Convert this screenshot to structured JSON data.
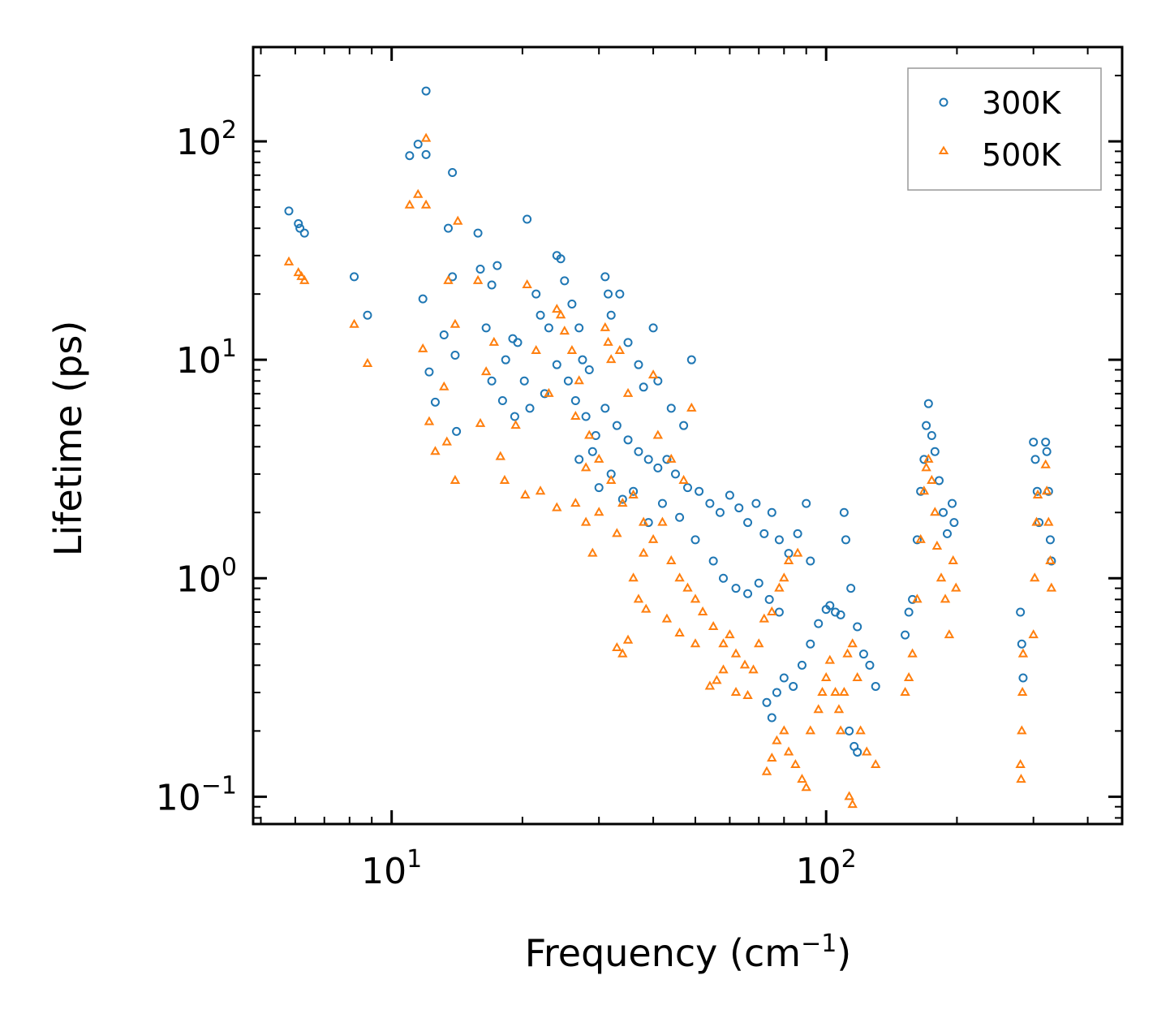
{
  "chart_data": {
    "type": "scatter",
    "title": "",
    "xlabel": "Frequency (cm",
    "xlabel_superscript": "−1",
    "xlabel_suffix": ")",
    "ylabel": "Lifetime (ps)",
    "xscale": "log",
    "yscale": "log",
    "xlim": [
      4.8,
      480
    ],
    "ylim": [
      0.075,
      270
    ],
    "x_ticks": [
      {
        "value": 10,
        "base": "10",
        "exp": "1"
      },
      {
        "value": 100,
        "base": "10",
        "exp": "2"
      }
    ],
    "y_ticks": [
      {
        "value": 0.1,
        "base": "10",
        "exp": "−1"
      },
      {
        "value": 1,
        "base": "10",
        "exp": "0"
      },
      {
        "value": 10,
        "base": "10",
        "exp": "1"
      },
      {
        "value": 100,
        "base": "10",
        "exp": "2"
      }
    ],
    "legend_position": "top-right",
    "colors": {
      "300K": "#1f77b4",
      "500K": "#ff7f0e"
    },
    "series": [
      {
        "name": "300K",
        "marker": "circle",
        "color": "#1f77b4",
        "points": [
          [
            5.8,
            48
          ],
          [
            6.1,
            42
          ],
          [
            6.15,
            40
          ],
          [
            6.3,
            38
          ],
          [
            8.2,
            24
          ],
          [
            8.8,
            16
          ],
          [
            11,
            86
          ],
          [
            11.5,
            97
          ],
          [
            12,
            170
          ],
          [
            12,
            87
          ],
          [
            13.8,
            72
          ],
          [
            11.8,
            19
          ],
          [
            12.2,
            8.8
          ],
          [
            12.6,
            6.4
          ],
          [
            13.2,
            13
          ],
          [
            13.5,
            40
          ],
          [
            14,
            10.5
          ],
          [
            14.1,
            4.7
          ],
          [
            13.8,
            24
          ],
          [
            15.8,
            38
          ],
          [
            16,
            26
          ],
          [
            16.5,
            14
          ],
          [
            17,
            22
          ],
          [
            17.5,
            27
          ],
          [
            18.3,
            10
          ],
          [
            19,
            12.5
          ],
          [
            19.5,
            12
          ],
          [
            20.2,
            8
          ],
          [
            20.5,
            44
          ],
          [
            21.5,
            20
          ],
          [
            22,
            16
          ],
          [
            23,
            14
          ],
          [
            24,
            30
          ],
          [
            24.5,
            29
          ],
          [
            25,
            23
          ],
          [
            26,
            18
          ],
          [
            27,
            14
          ],
          [
            27.5,
            10
          ],
          [
            28.5,
            9
          ],
          [
            31,
            24
          ],
          [
            31.5,
            20
          ],
          [
            32,
            16
          ],
          [
            33.5,
            20
          ],
          [
            35,
            12
          ],
          [
            37,
            9.5
          ],
          [
            38,
            7.5
          ],
          [
            40,
            14
          ],
          [
            41,
            8
          ],
          [
            44,
            6
          ],
          [
            47,
            5
          ],
          [
            49,
            10
          ],
          [
            17,
            8
          ],
          [
            18,
            6.5
          ],
          [
            19.2,
            5.5
          ],
          [
            20.8,
            6
          ],
          [
            22.5,
            7
          ],
          [
            24,
            9.5
          ],
          [
            25.5,
            8
          ],
          [
            26.5,
            6.5
          ],
          [
            28,
            5.5
          ],
          [
            29.5,
            4.5
          ],
          [
            31,
            6
          ],
          [
            33,
            5
          ],
          [
            35,
            4.3
          ],
          [
            37,
            3.8
          ],
          [
            39,
            3.5
          ],
          [
            41,
            3.2
          ],
          [
            43,
            3.5
          ],
          [
            45,
            3
          ],
          [
            48,
            2.6
          ],
          [
            51,
            2.5
          ],
          [
            54,
            2.2
          ],
          [
            57,
            2.0
          ],
          [
            60,
            2.4
          ],
          [
            63,
            2.1
          ],
          [
            66,
            1.8
          ],
          [
            69,
            2.2
          ],
          [
            72,
            1.6
          ],
          [
            75,
            2.0
          ],
          [
            78,
            1.5
          ],
          [
            82,
            1.3
          ],
          [
            86,
            1.6
          ],
          [
            90,
            2.2
          ],
          [
            92,
            1.2
          ],
          [
            55,
            1.2
          ],
          [
            58,
            1.0
          ],
          [
            62,
            0.9
          ],
          [
            66,
            0.85
          ],
          [
            70,
            0.95
          ],
          [
            74,
            0.8
          ],
          [
            78,
            0.7
          ],
          [
            73,
            0.27
          ],
          [
            75,
            0.23
          ],
          [
            77,
            0.3
          ],
          [
            80,
            0.35
          ],
          [
            84,
            0.32
          ],
          [
            88,
            0.4
          ],
          [
            92,
            0.5
          ],
          [
            96,
            0.62
          ],
          [
            100,
            0.72
          ],
          [
            102,
            0.75
          ],
          [
            105,
            0.7
          ],
          [
            108,
            0.68
          ],
          [
            110,
            2.0
          ],
          [
            111,
            1.5
          ],
          [
            114,
            0.9
          ],
          [
            118,
            0.6
          ],
          [
            122,
            0.45
          ],
          [
            126,
            0.4
          ],
          [
            130,
            0.32
          ],
          [
            113,
            0.2
          ],
          [
            116,
            0.17
          ],
          [
            118,
            0.16
          ],
          [
            152,
            0.55
          ],
          [
            155,
            0.7
          ],
          [
            158,
            0.8
          ],
          [
            162,
            1.5
          ],
          [
            165,
            2.5
          ],
          [
            168,
            3.5
          ],
          [
            170,
            5
          ],
          [
            172,
            6.3
          ],
          [
            175,
            4.5
          ],
          [
            178,
            3.8
          ],
          [
            182,
            2.8
          ],
          [
            186,
            2.0
          ],
          [
            190,
            1.6
          ],
          [
            195,
            2.2
          ],
          [
            197,
            1.8
          ],
          [
            280,
            0.7
          ],
          [
            282,
            0.5
          ],
          [
            284,
            0.35
          ],
          [
            300,
            4.2
          ],
          [
            303,
            3.5
          ],
          [
            306,
            2.5
          ],
          [
            309,
            1.8
          ],
          [
            320,
            4.2
          ],
          [
            322,
            3.8
          ],
          [
            325,
            2.5
          ],
          [
            328,
            1.5
          ],
          [
            330,
            1.2
          ],
          [
            36,
            2.5
          ],
          [
            39,
            1.8
          ],
          [
            42,
            2.2
          ],
          [
            46,
            1.9
          ],
          [
            50,
            1.5
          ],
          [
            27,
            3.5
          ],
          [
            29,
            3.8
          ],
          [
            32,
            3.0
          ],
          [
            30,
            2.6
          ],
          [
            34,
            2.3
          ]
        ]
      },
      {
        "name": "500K",
        "marker": "triangle",
        "color": "#ff7f0e",
        "points": [
          [
            5.8,
            28
          ],
          [
            6.1,
            25
          ],
          [
            6.2,
            24
          ],
          [
            6.3,
            23
          ],
          [
            8.2,
            14.5
          ],
          [
            8.8,
            9.6
          ],
          [
            11,
            51
          ],
          [
            11.5,
            57
          ],
          [
            12,
            103
          ],
          [
            12,
            51
          ],
          [
            14.2,
            43
          ],
          [
            11.8,
            11.2
          ],
          [
            12.2,
            5.2
          ],
          [
            12.6,
            3.8
          ],
          [
            13.2,
            7.5
          ],
          [
            13.5,
            23
          ],
          [
            14,
            14.5
          ],
          [
            14,
            2.8
          ],
          [
            13.4,
            4.2
          ],
          [
            15.8,
            23
          ],
          [
            16,
            5.1
          ],
          [
            16.5,
            8.8
          ],
          [
            17.2,
            12
          ],
          [
            17.8,
            3.6
          ],
          [
            18.2,
            2.8
          ],
          [
            19.3,
            5
          ],
          [
            20.3,
            2.4
          ],
          [
            20.5,
            22
          ],
          [
            21.5,
            11
          ],
          [
            22,
            2.5
          ],
          [
            23,
            7
          ],
          [
            24,
            17
          ],
          [
            24.5,
            16
          ],
          [
            25,
            13.5
          ],
          [
            26,
            11
          ],
          [
            27,
            8
          ],
          [
            28,
            3.2
          ],
          [
            29,
            1.3
          ],
          [
            31,
            14
          ],
          [
            31.5,
            12
          ],
          [
            32,
            10
          ],
          [
            33.5,
            11
          ],
          [
            35,
            7
          ],
          [
            36,
            1.0
          ],
          [
            37,
            0.8
          ],
          [
            38,
            1.3
          ],
          [
            40,
            8.5
          ],
          [
            41,
            4.5
          ],
          [
            44,
            3.5
          ],
          [
            47,
            2.8
          ],
          [
            49,
            6
          ],
          [
            26.5,
            5.5
          ],
          [
            28.5,
            4.5
          ],
          [
            30,
            3.5
          ],
          [
            32,
            2.8
          ],
          [
            34,
            2.2
          ],
          [
            36,
            2.4
          ],
          [
            38,
            1.8
          ],
          [
            40,
            1.5
          ],
          [
            42,
            1.8
          ],
          [
            44,
            1.2
          ],
          [
            46,
            1.0
          ],
          [
            48,
            0.9
          ],
          [
            50,
            0.8
          ],
          [
            52,
            0.7
          ],
          [
            55,
            0.6
          ],
          [
            58,
            0.5
          ],
          [
            60,
            0.55
          ],
          [
            62,
            0.45
          ],
          [
            65,
            0.4
          ],
          [
            68,
            0.38
          ],
          [
            70,
            0.5
          ],
          [
            72,
            0.65
          ],
          [
            75,
            0.7
          ],
          [
            78,
            0.9
          ],
          [
            80,
            1.0
          ],
          [
            82,
            1.2
          ],
          [
            86,
            1.3
          ],
          [
            33,
            0.48
          ],
          [
            34,
            0.45
          ],
          [
            35,
            0.52
          ],
          [
            38.5,
            0.72
          ],
          [
            43,
            0.65
          ],
          [
            46,
            0.56
          ],
          [
            50,
            0.5
          ],
          [
            54,
            0.32
          ],
          [
            56,
            0.34
          ],
          [
            58,
            0.38
          ],
          [
            62,
            0.3
          ],
          [
            66,
            0.29
          ],
          [
            73,
            0.13
          ],
          [
            75,
            0.15
          ],
          [
            77,
            0.18
          ],
          [
            80,
            0.2
          ],
          [
            82,
            0.16
          ],
          [
            85,
            0.14
          ],
          [
            88,
            0.12
          ],
          [
            90,
            0.11
          ],
          [
            92,
            0.2
          ],
          [
            96,
            0.25
          ],
          [
            98,
            0.3
          ],
          [
            100,
            0.35
          ],
          [
            102,
            0.42
          ],
          [
            105,
            0.3
          ],
          [
            107,
            0.25
          ],
          [
            108,
            0.2
          ],
          [
            110,
            0.3
          ],
          [
            112,
            0.45
          ],
          [
            115,
            0.5
          ],
          [
            118,
            0.35
          ],
          [
            113,
            0.1
          ],
          [
            115,
            0.092
          ],
          [
            120,
            0.2
          ],
          [
            124,
            0.16
          ],
          [
            130,
            0.14
          ],
          [
            152,
            0.3
          ],
          [
            155,
            0.35
          ],
          [
            158,
            0.45
          ],
          [
            162,
            0.8
          ],
          [
            165,
            1.5
          ],
          [
            168,
            2.5
          ],
          [
            170,
            3.2
          ],
          [
            172,
            3.5
          ],
          [
            175,
            2.8
          ],
          [
            178,
            2.0
          ],
          [
            180,
            1.4
          ],
          [
            184,
            1.0
          ],
          [
            188,
            0.8
          ],
          [
            192,
            0.55
          ],
          [
            196,
            1.2
          ],
          [
            199,
            0.9
          ],
          [
            280,
            0.14
          ],
          [
            281,
            0.12
          ],
          [
            282,
            0.2
          ],
          [
            283,
            0.3
          ],
          [
            284,
            0.45
          ],
          [
            300,
            0.55
          ],
          [
            302,
            1.0
          ],
          [
            305,
            1.8
          ],
          [
            307,
            2.4
          ],
          [
            320,
            3.3
          ],
          [
            322,
            2.5
          ],
          [
            325,
            1.8
          ],
          [
            328,
            1.2
          ],
          [
            330,
            0.9
          ],
          [
            24,
            2.1
          ],
          [
            26.5,
            2.2
          ],
          [
            28,
            1.8
          ],
          [
            30,
            2.0
          ],
          [
            33,
            1.6
          ]
        ]
      }
    ]
  }
}
